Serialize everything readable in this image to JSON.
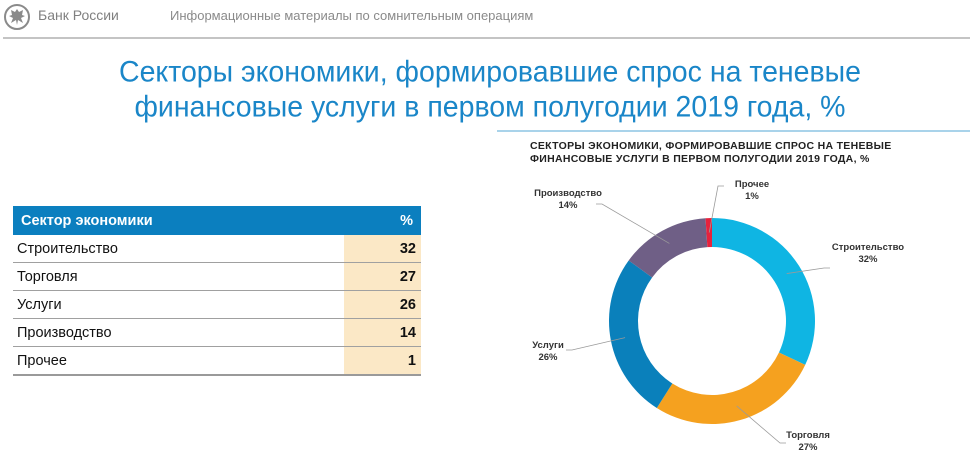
{
  "header": {
    "brand": "Банк России",
    "subtitle": "Информационные материалы по сомнительным операциям",
    "logo_icon": "double-headed-eagle-emblem"
  },
  "main_title_line1": "Секторы экономики, формировавшие спрос на теневые",
  "main_title_line2": "финансовые услуги в первом полугодии 2019 года, %",
  "table": {
    "headers": [
      "Сектор экономики",
      "%"
    ],
    "rows": [
      {
        "sector": "Строительство",
        "value": "32"
      },
      {
        "sector": "Торговля",
        "value": "27"
      },
      {
        "sector": "Услуги",
        "value": "26"
      },
      {
        "sector": "Производство",
        "value": "14"
      },
      {
        "sector": "Прочее",
        "value": "1"
      }
    ]
  },
  "colors": {
    "title_blue": "#1a86c8",
    "header_blue": "#0b7fbf",
    "value_bg": "#fbe8c6"
  },
  "chart_data": {
    "type": "pie",
    "variant": "donut",
    "title_line1": "СЕКТОРЫ ЭКОНОМИКИ, ФОРМИРОВАВШИЕ СПРОС НА ТЕНЕВЫЕ",
    "title_line2": "ФИНАНСОВЫЕ УСЛУГИ В ПЕРВОМ ПОЛУГОДИИ 2019 ГОДА, %",
    "start": "top, clockwise",
    "slices": [
      {
        "label": "Строительство",
        "value": 32,
        "value_label": "32%",
        "color": "#0fb5e3"
      },
      {
        "label": "Торговля",
        "value": 27,
        "value_label": "27%",
        "color": "#f5a11f"
      },
      {
        "label": "Услуги",
        "value": 26,
        "value_label": "26%",
        "color": "#0a80bb"
      },
      {
        "label": "Производство",
        "value": 14,
        "value_label": "14%",
        "color": "#6f5f86"
      },
      {
        "label": "Прочее",
        "value": 1,
        "value_label": "1%",
        "color": "#e6223d"
      }
    ]
  }
}
